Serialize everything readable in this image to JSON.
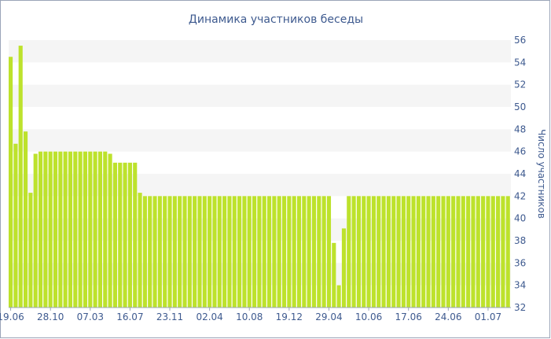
{
  "chart_data": {
    "type": "bar",
    "title": "Динамика участников беседы",
    "xlabel": "",
    "ylabel": "Число участников",
    "ylim": [
      32,
      56
    ],
    "yticks": [
      32,
      34,
      36,
      38,
      40,
      42,
      44,
      46,
      48,
      50,
      52,
      54,
      56
    ],
    "y_axis_position": "right",
    "grid": "horizontal bands",
    "x_tick_labels": [
      {
        "index": 0,
        "label": "19.06"
      },
      {
        "index": 8,
        "label": "28.10"
      },
      {
        "index": 16,
        "label": "07.03"
      },
      {
        "index": 24,
        "label": "16.07"
      },
      {
        "index": 32,
        "label": "23.11"
      },
      {
        "index": 40,
        "label": "02.04"
      },
      {
        "index": 48,
        "label": "10.08"
      },
      {
        "index": 56,
        "label": "19.12"
      },
      {
        "index": 64,
        "label": "29.04"
      },
      {
        "index": 72,
        "label": "10.06"
      },
      {
        "index": 80,
        "label": "17.06"
      },
      {
        "index": 88,
        "label": "24.06"
      },
      {
        "index": 96,
        "label": "01.07"
      }
    ],
    "values": [
      54.5,
      46.7,
      55.5,
      47.8,
      42.3,
      45.8,
      46,
      46,
      46,
      46,
      46,
      46,
      46,
      46,
      46,
      46,
      46,
      46,
      46,
      46,
      45.8,
      45,
      45,
      45,
      45,
      45,
      42.3,
      42,
      42,
      42,
      42,
      42,
      42,
      42,
      42,
      42,
      42,
      42,
      42,
      42,
      42,
      42,
      42,
      42,
      42,
      42,
      42,
      42,
      42,
      42,
      42,
      42,
      42,
      42,
      42,
      42,
      42,
      42,
      42,
      42,
      42,
      42,
      42,
      42,
      42,
      37.8,
      34,
      39.1,
      42,
      42,
      42,
      42,
      42,
      42,
      42,
      42,
      42,
      42,
      42,
      42,
      42,
      42,
      42,
      42,
      42,
      42,
      42,
      42,
      42,
      42,
      42,
      42,
      42,
      42,
      42,
      42,
      42,
      42,
      42,
      42,
      42
    ],
    "colors": {
      "bar": "#bde22c",
      "text": "#3e5a8f",
      "band": "#f5f5f5",
      "axis": "#9aa4b8"
    }
  }
}
